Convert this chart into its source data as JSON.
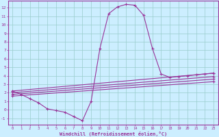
{
  "xlabel": "Windchill (Refroidissement éolien,°C)",
  "xlim": [
    -0.5,
    23.5
  ],
  "ylim": [
    -1.8,
    12.8
  ],
  "yticks": [
    -1,
    0,
    1,
    2,
    3,
    4,
    5,
    6,
    7,
    8,
    9,
    10,
    11,
    12
  ],
  "xticks": [
    0,
    1,
    2,
    3,
    4,
    5,
    6,
    7,
    8,
    9,
    10,
    11,
    12,
    13,
    14,
    15,
    16,
    17,
    18,
    19,
    20,
    21,
    22,
    23
  ],
  "bg_color": "#cceeff",
  "line_color": "#993399",
  "grid_color": "#99cccc",
  "curve_main_x": [
    0,
    1,
    2,
    3,
    4,
    5,
    6,
    7,
    8,
    9,
    10,
    11,
    12,
    13,
    14,
    15,
    16,
    17,
    18,
    19,
    20,
    21,
    22,
    23
  ],
  "curve_main_y": [
    2.2,
    1.8,
    1.3,
    0.8,
    0.1,
    -0.1,
    -0.3,
    -0.8,
    -1.3,
    1.0,
    7.2,
    11.3,
    12.1,
    12.4,
    12.3,
    11.1,
    7.2,
    4.2,
    3.8,
    3.9,
    4.0,
    4.1,
    4.2,
    4.3
  ],
  "flat_lines": [
    {
      "x": [
        0,
        23
      ],
      "y": [
        2.2,
        4.3
      ]
    },
    {
      "x": [
        0,
        23
      ],
      "y": [
        2.0,
        3.9
      ]
    },
    {
      "x": [
        0,
        23
      ],
      "y": [
        1.8,
        3.6
      ]
    },
    {
      "x": [
        0,
        23
      ],
      "y": [
        1.6,
        3.3
      ]
    }
  ]
}
